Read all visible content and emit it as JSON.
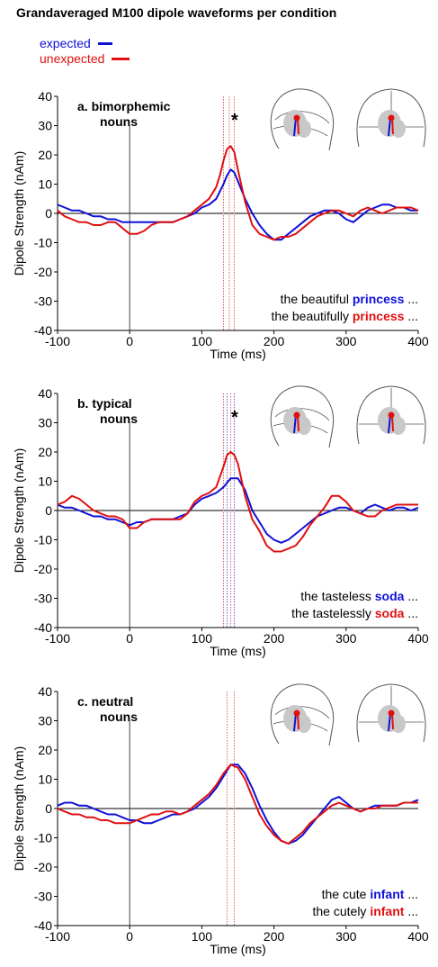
{
  "title": "Grandaveraged M100 dipole waveforms per condition",
  "legend": [
    {
      "label": "expected",
      "color": "#1010d8"
    },
    {
      "label": "unexpected",
      "color": "#e01010"
    }
  ],
  "colors": {
    "expected": "#1010d8",
    "unexpected": "#e01010",
    "cursor_red": "#e06060",
    "cursor_blue": "#6060e0",
    "brain": "#c8c8c8"
  },
  "chart_data": [
    {
      "type": "line",
      "title": "a. bimorphemic nouns",
      "title_lines": [
        "a. bimorphemic",
        "nouns"
      ],
      "xlabel": "Time (ms)",
      "ylabel": "Dipole Strength (nAm)",
      "xlim": [
        -100,
        400
      ],
      "ylim": [
        -40,
        40
      ],
      "xticks": [
        -100,
        0,
        100,
        200,
        300,
        400
      ],
      "yticks": [
        40,
        30,
        20,
        10,
        0,
        -10,
        -20,
        -30,
        -40
      ],
      "significance_marker": "*",
      "cursor_lines": [
        {
          "x": 130,
          "color": "red"
        },
        {
          "x": 138,
          "color": "red"
        },
        {
          "x": 145,
          "color": "red"
        }
      ],
      "annotation_lines": [
        {
          "prefix": "the beautiful ",
          "word": "princess",
          "suffix": " ...",
          "series": "expected"
        },
        {
          "prefix": "the beautifully ",
          "word": "princess",
          "suffix": " ...",
          "series": "unexpected"
        }
      ],
      "series": [
        {
          "name": "expected",
          "x": [
            -100,
            -90,
            -80,
            -70,
            -60,
            -50,
            -40,
            -30,
            -20,
            -10,
            0,
            10,
            20,
            30,
            40,
            50,
            60,
            70,
            80,
            90,
            100,
            110,
            120,
            130,
            135,
            140,
            145,
            150,
            160,
            170,
            180,
            190,
            200,
            210,
            220,
            230,
            240,
            250,
            260,
            270,
            280,
            290,
            300,
            310,
            320,
            330,
            340,
            350,
            360,
            370,
            380,
            390,
            400
          ],
          "y": [
            3,
            2,
            1,
            1,
            0,
            -1,
            -1,
            -2,
            -2,
            -3,
            -3,
            -3,
            -3,
            -3,
            -3,
            -3,
            -3,
            -2,
            -1,
            0,
            2,
            3,
            5,
            10,
            13,
            15,
            14,
            11,
            5,
            0,
            -4,
            -7,
            -9,
            -9,
            -7,
            -5,
            -3,
            -1,
            0,
            1,
            1,
            0,
            -2,
            -3,
            -1,
            1,
            2,
            3,
            3,
            2,
            2,
            1,
            1
          ]
        },
        {
          "name": "unexpected",
          "x": [
            -100,
            -90,
            -80,
            -70,
            -60,
            -50,
            -40,
            -30,
            -20,
            -10,
            0,
            10,
            20,
            30,
            40,
            50,
            60,
            70,
            80,
            90,
            100,
            110,
            120,
            125,
            130,
            135,
            140,
            145,
            150,
            160,
            170,
            180,
            190,
            200,
            210,
            220,
            230,
            240,
            250,
            260,
            270,
            280,
            290,
            300,
            310,
            320,
            330,
            340,
            350,
            360,
            370,
            380,
            390,
            400
          ],
          "y": [
            1,
            -1,
            -2,
            -3,
            -3,
            -4,
            -4,
            -3,
            -3,
            -5,
            -7,
            -7,
            -6,
            -4,
            -3,
            -3,
            -3,
            -2,
            -1,
            1,
            3,
            5,
            9,
            13,
            18,
            22,
            23,
            21,
            15,
            4,
            -4,
            -7,
            -8,
            -9,
            -8,
            -8,
            -7,
            -5,
            -3,
            -1,
            0,
            1,
            1,
            0,
            -1,
            1,
            2,
            1,
            0,
            1,
            2,
            2,
            2,
            1
          ]
        }
      ]
    },
    {
      "type": "line",
      "title": "b. typical nouns",
      "title_lines": [
        "b. typical",
        "nouns"
      ],
      "xlabel": "Time (ms)",
      "ylabel": "Dipole Strength (nAm)",
      "xlim": [
        -100,
        400
      ],
      "ylim": [
        -40,
        40
      ],
      "xticks": [
        -100,
        0,
        100,
        200,
        300,
        400
      ],
      "yticks": [
        40,
        30,
        20,
        10,
        0,
        -10,
        -20,
        -30,
        -40
      ],
      "significance_marker": "*",
      "cursor_lines": [
        {
          "x": 130,
          "color": "red"
        },
        {
          "x": 135,
          "color": "blue"
        },
        {
          "x": 140,
          "color": "red"
        },
        {
          "x": 145,
          "color": "blue"
        }
      ],
      "annotation_lines": [
        {
          "prefix": "the tasteless ",
          "word": "soda",
          "suffix": " ...",
          "series": "expected"
        },
        {
          "prefix": "the tastelessly ",
          "word": "soda",
          "suffix": " ...",
          "series": "unexpected"
        }
      ],
      "series": [
        {
          "name": "expected",
          "x": [
            -100,
            -90,
            -80,
            -70,
            -60,
            -50,
            -40,
            -30,
            -20,
            -10,
            0,
            10,
            20,
            30,
            40,
            50,
            60,
            70,
            80,
            90,
            100,
            110,
            120,
            130,
            140,
            150,
            160,
            170,
            180,
            190,
            200,
            210,
            220,
            230,
            240,
            250,
            260,
            270,
            280,
            290,
            300,
            310,
            320,
            330,
            340,
            350,
            360,
            370,
            380,
            390,
            400
          ],
          "y": [
            2,
            1,
            1,
            0,
            -1,
            -2,
            -2,
            -3,
            -3,
            -4,
            -5,
            -4,
            -4,
            -3,
            -3,
            -3,
            -3,
            -2,
            -1,
            2,
            4,
            5,
            6,
            8,
            11,
            11,
            7,
            0,
            -4,
            -8,
            -10,
            -11,
            -10,
            -8,
            -6,
            -4,
            -2,
            -1,
            0,
            1,
            1,
            0,
            -1,
            1,
            2,
            1,
            0,
            1,
            1,
            0,
            1
          ]
        },
        {
          "name": "unexpected",
          "x": [
            -100,
            -90,
            -80,
            -70,
            -60,
            -50,
            -40,
            -30,
            -20,
            -10,
            0,
            10,
            20,
            30,
            40,
            50,
            60,
            70,
            80,
            90,
            100,
            110,
            120,
            130,
            135,
            140,
            145,
            150,
            160,
            170,
            180,
            190,
            200,
            210,
            220,
            230,
            240,
            250,
            260,
            270,
            280,
            290,
            300,
            310,
            320,
            330,
            340,
            350,
            360,
            370,
            380,
            390,
            400
          ],
          "y": [
            2,
            3,
            5,
            4,
            2,
            0,
            -1,
            -2,
            -2,
            -3,
            -6,
            -6,
            -4,
            -3,
            -3,
            -3,
            -3,
            -3,
            -1,
            3,
            5,
            6,
            8,
            15,
            19,
            20,
            19,
            16,
            5,
            -3,
            -7,
            -12,
            -14,
            -14,
            -13,
            -12,
            -9,
            -5,
            -2,
            1,
            5,
            5,
            3,
            0,
            -1,
            -2,
            -2,
            0,
            1,
            2,
            2,
            2,
            2
          ]
        }
      ]
    },
    {
      "type": "line",
      "title": "c. neutral nouns",
      "title_lines": [
        "c. neutral",
        "nouns"
      ],
      "xlabel": "Time (ms)",
      "ylabel": "Dipole Strength (nAm)",
      "xlim": [
        -100,
        400
      ],
      "ylim": [
        -40,
        40
      ],
      "xticks": [
        -100,
        0,
        100,
        200,
        300,
        400
      ],
      "yticks": [
        40,
        30,
        20,
        10,
        0,
        -10,
        -20,
        -30,
        -40
      ],
      "significance_marker": "",
      "cursor_lines": [
        {
          "x": 135,
          "color": "red"
        },
        {
          "x": 145,
          "color": "red"
        }
      ],
      "annotation_lines": [
        {
          "prefix": "the cute ",
          "word": "infant",
          "suffix": " ...",
          "series": "expected"
        },
        {
          "prefix": "the cutely ",
          "word": "infant",
          "suffix": " ...",
          "series": "unexpected"
        }
      ],
      "series": [
        {
          "name": "expected",
          "x": [
            -100,
            -90,
            -80,
            -70,
            -60,
            -50,
            -40,
            -30,
            -20,
            -10,
            0,
            10,
            20,
            30,
            40,
            50,
            60,
            70,
            80,
            90,
            100,
            110,
            120,
            130,
            140,
            150,
            160,
            170,
            180,
            190,
            200,
            210,
            220,
            230,
            240,
            250,
            260,
            270,
            280,
            290,
            300,
            310,
            320,
            330,
            340,
            350,
            360,
            370,
            380,
            390,
            400
          ],
          "y": [
            1,
            2,
            2,
            1,
            1,
            0,
            -1,
            -2,
            -2,
            -3,
            -4,
            -4,
            -5,
            -5,
            -4,
            -3,
            -2,
            -2,
            -1,
            0,
            2,
            4,
            7,
            11,
            15,
            15,
            12,
            7,
            1,
            -4,
            -8,
            -11,
            -12,
            -11,
            -9,
            -6,
            -3,
            0,
            3,
            4,
            2,
            0,
            -1,
            0,
            1,
            1,
            1,
            1,
            2,
            2,
            3
          ]
        },
        {
          "name": "unexpected",
          "x": [
            -100,
            -90,
            -80,
            -70,
            -60,
            -50,
            -40,
            -30,
            -20,
            -10,
            0,
            10,
            20,
            30,
            40,
            50,
            60,
            70,
            80,
            90,
            100,
            110,
            120,
            130,
            140,
            150,
            160,
            170,
            180,
            190,
            200,
            210,
            220,
            230,
            240,
            250,
            260,
            270,
            280,
            290,
            300,
            310,
            320,
            330,
            340,
            350,
            360,
            370,
            380,
            390,
            400
          ],
          "y": [
            0,
            -1,
            -2,
            -2,
            -3,
            -3,
            -4,
            -4,
            -5,
            -5,
            -5,
            -4,
            -3,
            -2,
            -2,
            -1,
            -1,
            -2,
            -1,
            1,
            3,
            5,
            8,
            12,
            15,
            14,
            10,
            4,
            -2,
            -6,
            -9,
            -11,
            -12,
            -10,
            -8,
            -5,
            -3,
            -1,
            1,
            2,
            1,
            0,
            -1,
            0,
            0,
            1,
            1,
            1,
            2,
            2,
            2
          ]
        }
      ]
    }
  ]
}
